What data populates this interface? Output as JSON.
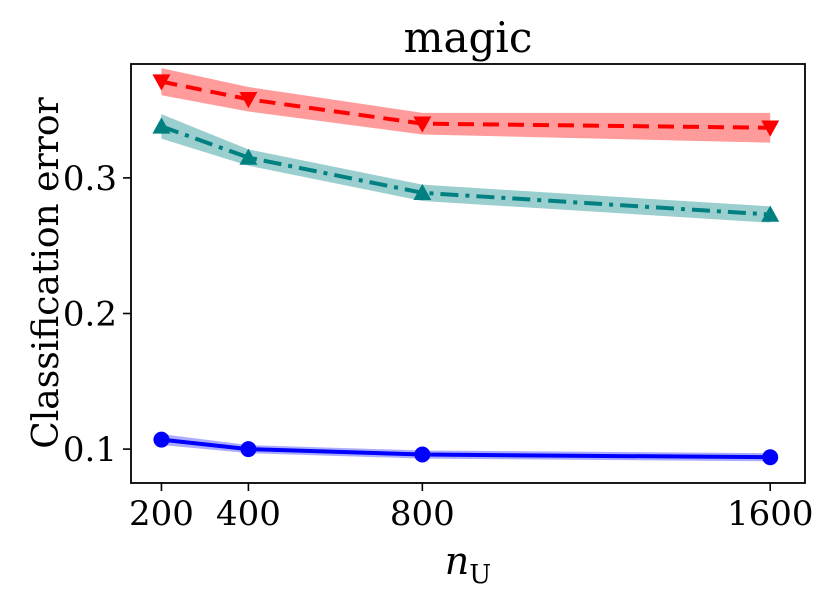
{
  "chart_data": {
    "type": "line",
    "title": "magic",
    "xlabel": {
      "main": "n",
      "sub": "U"
    },
    "ylabel": "Classification error",
    "x": [
      200,
      400,
      800,
      1600
    ],
    "x_tick_labels": [
      "200",
      "400",
      "800",
      "1600"
    ],
    "xlim": [
      130,
      1680
    ],
    "y_ticks": [
      0.1,
      0.2,
      0.3
    ],
    "y_tick_labels": [
      "0.1",
      "0.2",
      "0.3"
    ],
    "ylim": [
      0.075,
      0.384
    ],
    "grid": false,
    "legend": "none",
    "series": [
      {
        "color": "#ff0000",
        "band_color": "#ff6666",
        "line_style": "dashed",
        "marker": "triangle-down",
        "values": [
          0.371,
          0.358,
          0.34,
          0.337
        ],
        "band": [
          0.01,
          0.009,
          0.008,
          0.011
        ]
      },
      {
        "color": "#008080",
        "band_color": "#66b3b3",
        "line_style": "dash-dot",
        "marker": "triangle-up",
        "values": [
          0.338,
          0.315,
          0.289,
          0.273
        ],
        "band": [
          0.009,
          0.006,
          0.006,
          0.006
        ]
      },
      {
        "color": "#0000ff",
        "band_color": "#8080ff",
        "line_style": "solid",
        "marker": "circle",
        "values": [
          0.107,
          0.1,
          0.096,
          0.094
        ],
        "band": [
          0.004,
          0.003,
          0.003,
          0.003
        ]
      }
    ]
  }
}
